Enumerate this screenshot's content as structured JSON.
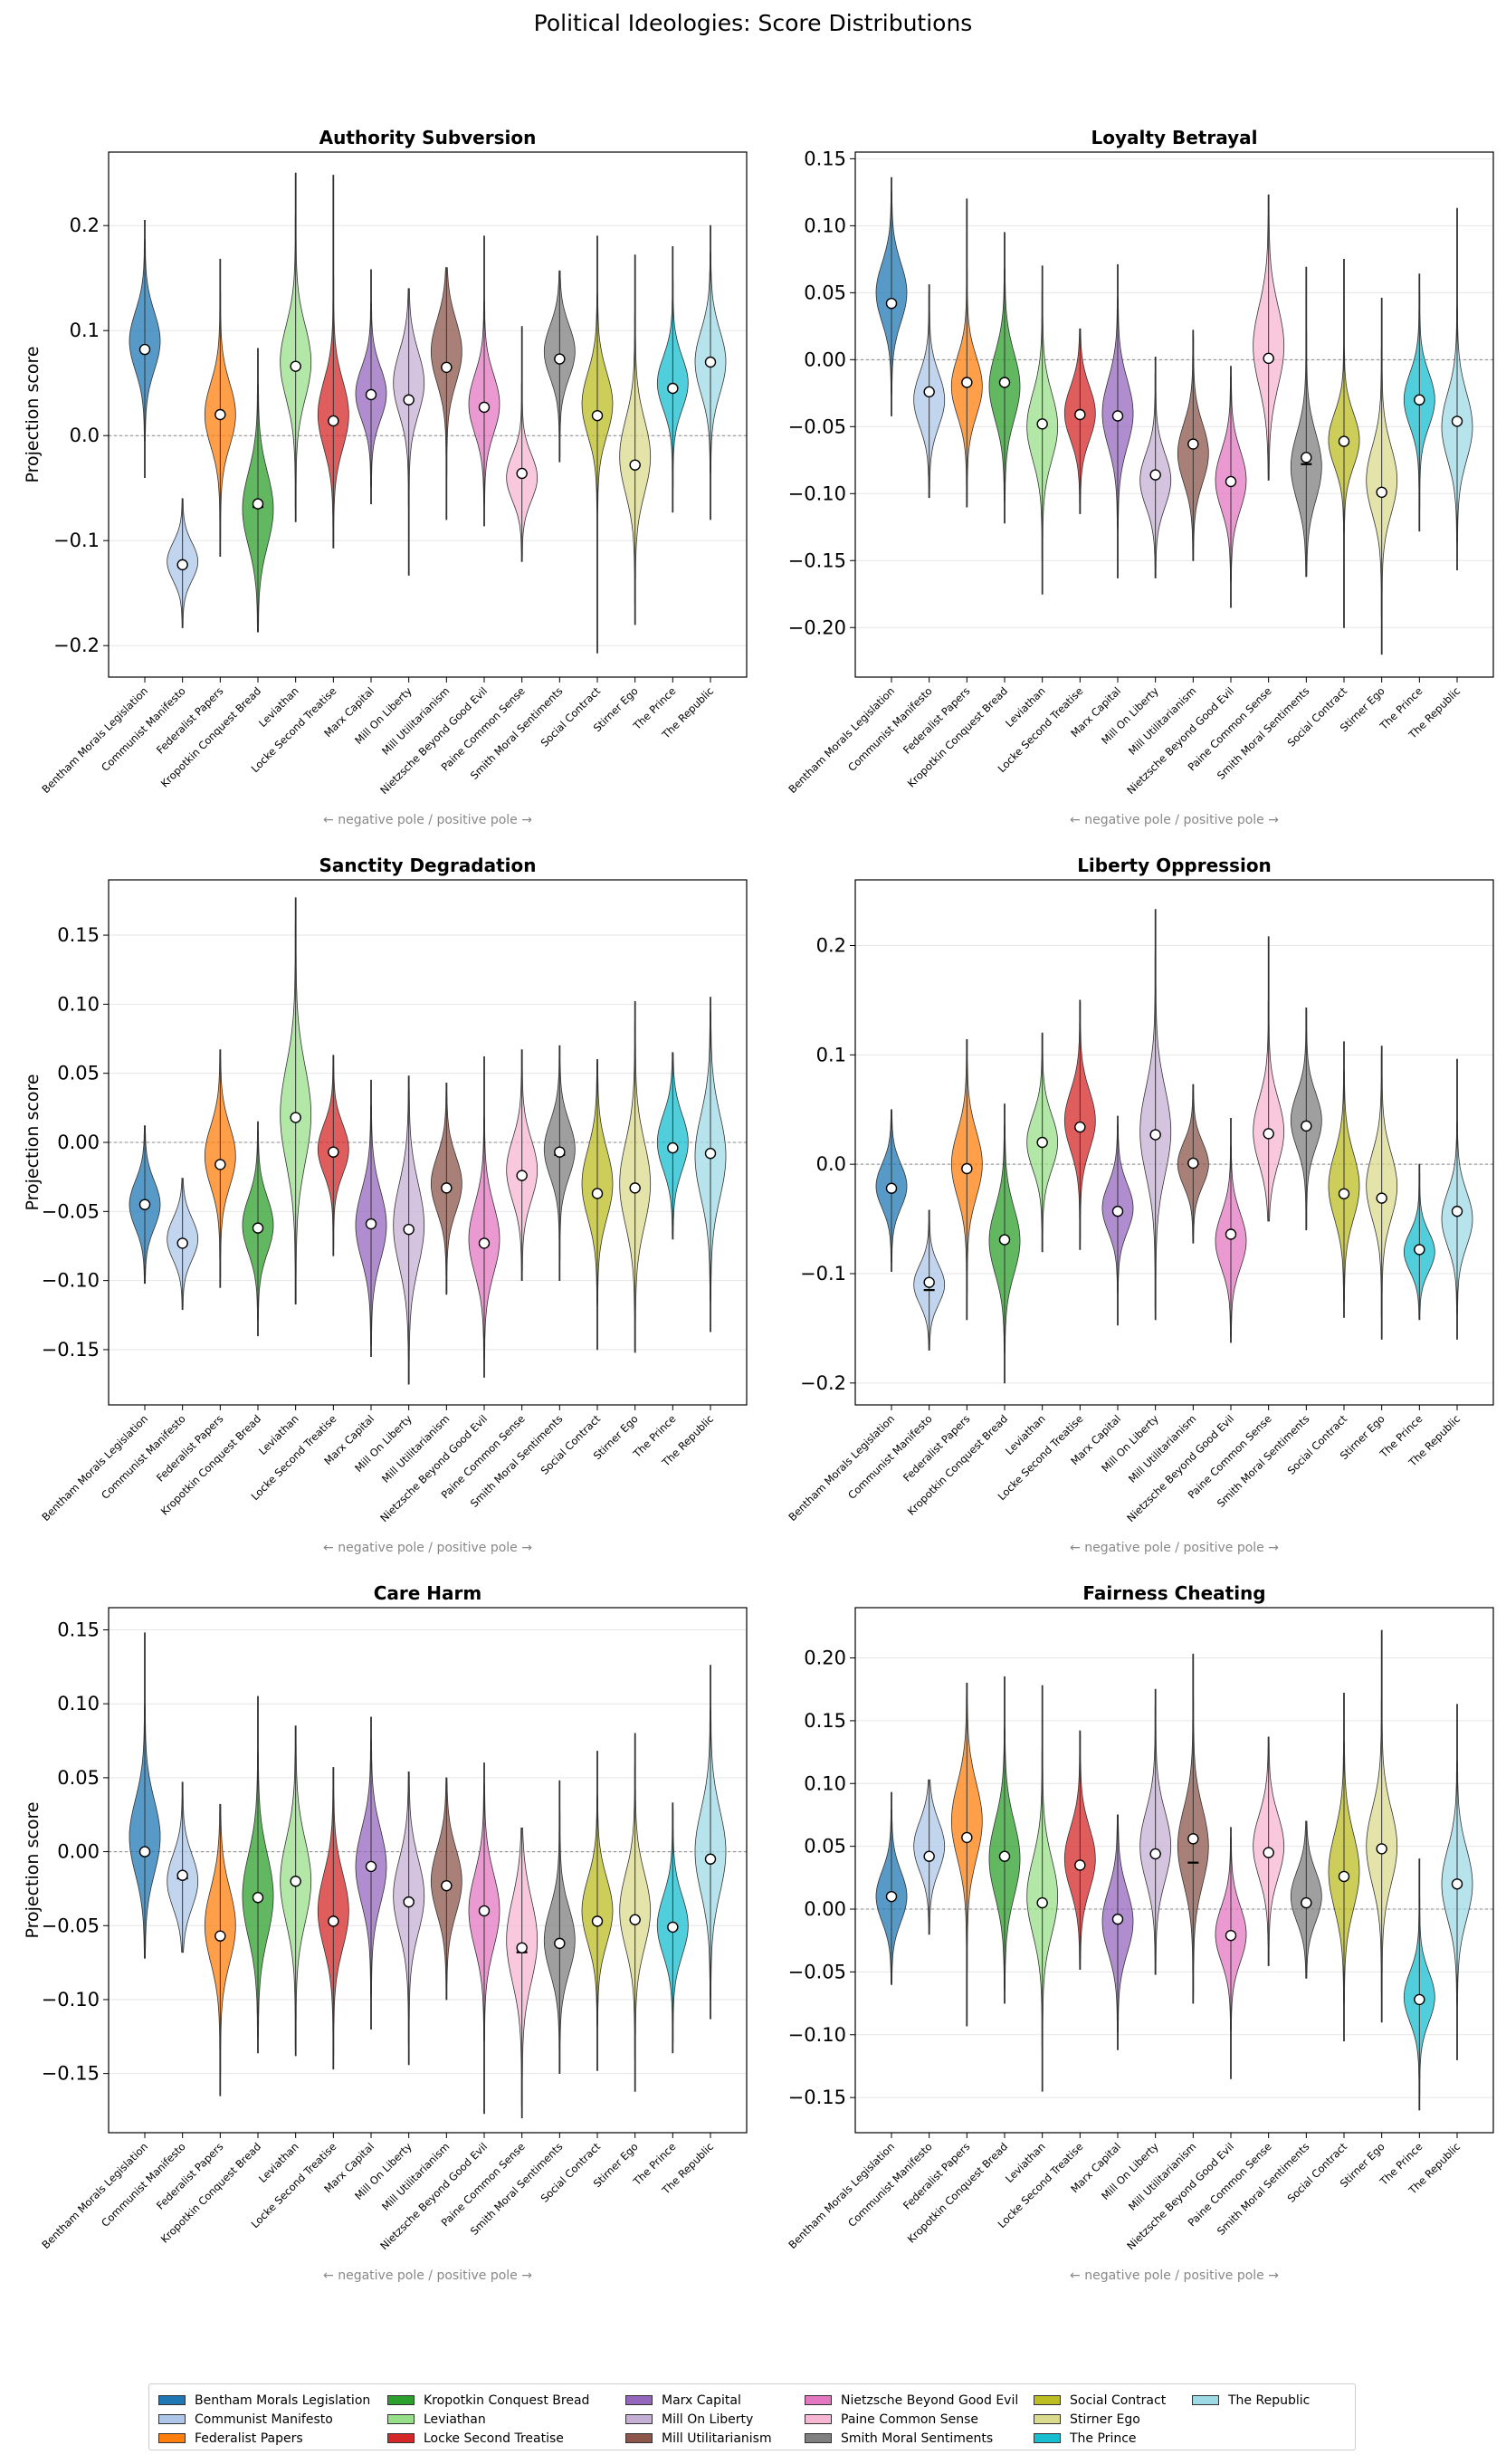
{
  "suptitle": "Political Ideologies: Score Distributions",
  "texts_common": {
    "ylabel": "Projection score",
    "pole_note": "← negative pole   /   positive pole →"
  },
  "chart_data": [
    {
      "type": "violin",
      "title": "Authority Subversion",
      "ylabel": "Projection score",
      "ylim": [
        -0.23,
        0.27
      ],
      "ticks": [
        -0.2,
        -0.1,
        0.0,
        0.1,
        0.2
      ],
      "tick_labels": [
        "−0.2",
        "−0.1",
        "0.0",
        "0.1",
        "0.2"
      ],
      "has_ylabel": true,
      "series": [
        {
          "min": -0.04,
          "max": 0.205,
          "mean": 0.082,
          "median": 0.082,
          "mode": 0.09,
          "sd": 0.028
        },
        {
          "min": -0.183,
          "max": -0.06,
          "mean": -0.123,
          "median": -0.123,
          "mode": -0.12,
          "sd": 0.018
        },
        {
          "min": -0.115,
          "max": 0.168,
          "mean": 0.02,
          "median": 0.02,
          "mode": 0.02,
          "sd": 0.03
        },
        {
          "min": -0.187,
          "max": 0.083,
          "mean": -0.065,
          "median": -0.068,
          "mode": -0.07,
          "sd": 0.035
        },
        {
          "min": -0.082,
          "max": 0.25,
          "mean": 0.066,
          "median": 0.066,
          "mode": 0.07,
          "sd": 0.035
        },
        {
          "min": -0.107,
          "max": 0.248,
          "mean": 0.014,
          "median": 0.014,
          "mode": 0.02,
          "sd": 0.032
        },
        {
          "min": -0.065,
          "max": 0.158,
          "mean": 0.039,
          "median": 0.039,
          "mode": 0.04,
          "sd": 0.025
        },
        {
          "min": -0.133,
          "max": 0.14,
          "mean": 0.034,
          "median": 0.034,
          "mode": 0.05,
          "sd": 0.03
        },
        {
          "min": -0.08,
          "max": 0.16,
          "mean": 0.065,
          "median": 0.065,
          "mode": 0.08,
          "sd": 0.03
        },
        {
          "min": -0.086,
          "max": 0.19,
          "mean": 0.027,
          "median": 0.027,
          "mode": 0.03,
          "sd": 0.028
        },
        {
          "min": -0.12,
          "max": 0.104,
          "mean": -0.036,
          "median": -0.036,
          "mode": -0.04,
          "sd": 0.022
        },
        {
          "min": -0.025,
          "max": 0.157,
          "mean": 0.073,
          "median": 0.073,
          "mode": 0.08,
          "sd": 0.025
        },
        {
          "min": -0.207,
          "max": 0.19,
          "mean": 0.019,
          "median": 0.019,
          "mode": 0.03,
          "sd": 0.03
        },
        {
          "min": -0.18,
          "max": 0.172,
          "mean": -0.028,
          "median": -0.028,
          "mode": -0.02,
          "sd": 0.035
        },
        {
          "min": -0.073,
          "max": 0.18,
          "mean": 0.045,
          "median": 0.045,
          "mode": 0.05,
          "sd": 0.025
        },
        {
          "min": -0.08,
          "max": 0.2,
          "mean": 0.07,
          "median": 0.07,
          "mode": 0.07,
          "sd": 0.03
        }
      ]
    },
    {
      "type": "violin",
      "title": "Loyalty Betrayal",
      "ylabel": "",
      "ylim": [
        -0.237,
        0.155
      ],
      "ticks": [
        -0.2,
        -0.15,
        -0.1,
        -0.05,
        0.0,
        0.05,
        0.1,
        0.15
      ],
      "tick_labels": [
        "−0.20",
        "−0.15",
        "−0.10",
        "−0.05",
        "0.00",
        "0.05",
        "0.10",
        "0.15"
      ],
      "has_ylabel": false,
      "series": [
        {
          "min": -0.042,
          "max": 0.136,
          "mean": 0.042,
          "median": 0.042,
          "mode": 0.05,
          "sd": 0.022
        },
        {
          "min": -0.103,
          "max": 0.056,
          "mean": -0.024,
          "median": -0.024,
          "mode": -0.03,
          "sd": 0.02
        },
        {
          "min": -0.11,
          "max": 0.12,
          "mean": -0.017,
          "median": -0.017,
          "mode": -0.02,
          "sd": 0.022
        },
        {
          "min": -0.122,
          "max": 0.095,
          "mean": -0.017,
          "median": -0.017,
          "mode": -0.02,
          "sd": 0.025
        },
        {
          "min": -0.175,
          "max": 0.07,
          "mean": -0.048,
          "median": -0.048,
          "mode": -0.05,
          "sd": 0.025
        },
        {
          "min": -0.115,
          "max": 0.023,
          "mean": -0.041,
          "median": -0.041,
          "mode": -0.04,
          "sd": 0.02
        },
        {
          "min": -0.163,
          "max": 0.071,
          "mean": -0.042,
          "median": -0.042,
          "mode": -0.04,
          "sd": 0.025
        },
        {
          "min": -0.163,
          "max": 0.002,
          "mean": -0.086,
          "median": -0.086,
          "mode": -0.09,
          "sd": 0.02
        },
        {
          "min": -0.15,
          "max": 0.022,
          "mean": -0.063,
          "median": -0.063,
          "mode": -0.07,
          "sd": 0.022
        },
        {
          "min": -0.185,
          "max": -0.005,
          "mean": -0.091,
          "median": -0.091,
          "mode": -0.09,
          "sd": 0.022
        },
        {
          "min": -0.09,
          "max": 0.123,
          "mean": 0.001,
          "median": 0.001,
          "mode": 0.01,
          "sd": 0.03
        },
        {
          "min": -0.162,
          "max": 0.069,
          "mean": -0.073,
          "median": -0.078,
          "mode": -0.08,
          "sd": 0.025
        },
        {
          "min": -0.2,
          "max": 0.075,
          "mean": -0.061,
          "median": -0.062,
          "mode": -0.06,
          "sd": 0.02
        },
        {
          "min": -0.22,
          "max": 0.046,
          "mean": -0.099,
          "median": -0.099,
          "mode": -0.09,
          "sd": 0.025
        },
        {
          "min": -0.128,
          "max": 0.064,
          "mean": -0.03,
          "median": -0.03,
          "mode": -0.03,
          "sd": 0.02
        },
        {
          "min": -0.157,
          "max": 0.113,
          "mean": -0.046,
          "median": -0.046,
          "mode": -0.05,
          "sd": 0.025
        }
      ]
    },
    {
      "type": "violin",
      "title": "Sanctity Degradation",
      "ylabel": "Projection score",
      "ylim": [
        -0.19,
        0.19
      ],
      "ticks": [
        -0.15,
        -0.1,
        -0.05,
        0.0,
        0.05,
        0.1,
        0.15
      ],
      "tick_labels": [
        "−0.15",
        "−0.10",
        "−0.05",
        "0.00",
        "0.05",
        "0.10",
        "0.15"
      ],
      "has_ylabel": true,
      "series": [
        {
          "min": -0.102,
          "max": 0.012,
          "mean": -0.045,
          "median": -0.045,
          "mode": -0.045,
          "sd": 0.017
        },
        {
          "min": -0.121,
          "max": -0.026,
          "mean": -0.073,
          "median": -0.073,
          "mode": -0.07,
          "sd": 0.015
        },
        {
          "min": -0.105,
          "max": 0.067,
          "mean": -0.016,
          "median": -0.016,
          "mode": -0.01,
          "sd": 0.022
        },
        {
          "min": -0.14,
          "max": 0.015,
          "mean": -0.062,
          "median": -0.062,
          "mode": -0.06,
          "sd": 0.02
        },
        {
          "min": -0.117,
          "max": 0.177,
          "mean": 0.018,
          "median": 0.018,
          "mode": 0.02,
          "sd": 0.035
        },
        {
          "min": -0.082,
          "max": 0.063,
          "mean": -0.007,
          "median": -0.007,
          "mode": -0.005,
          "sd": 0.018
        },
        {
          "min": -0.155,
          "max": 0.045,
          "mean": -0.059,
          "median": -0.059,
          "mode": -0.06,
          "sd": 0.025
        },
        {
          "min": -0.175,
          "max": 0.048,
          "mean": -0.063,
          "median": -0.063,
          "mode": -0.06,
          "sd": 0.03
        },
        {
          "min": -0.11,
          "max": 0.043,
          "mean": -0.033,
          "median": -0.033,
          "mode": -0.03,
          "sd": 0.02
        },
        {
          "min": -0.17,
          "max": 0.062,
          "mean": -0.073,
          "median": -0.073,
          "mode": -0.07,
          "sd": 0.025
        },
        {
          "min": -0.1,
          "max": 0.067,
          "mean": -0.024,
          "median": -0.024,
          "mode": -0.02,
          "sd": 0.022
        },
        {
          "min": -0.1,
          "max": 0.07,
          "mean": -0.007,
          "median": -0.009,
          "mode": -0.005,
          "sd": 0.02
        },
        {
          "min": -0.15,
          "max": 0.06,
          "mean": -0.037,
          "median": -0.037,
          "mode": -0.03,
          "sd": 0.025
        },
        {
          "min": -0.152,
          "max": 0.102,
          "mean": -0.033,
          "median": -0.033,
          "mode": -0.03,
          "sd": 0.03
        },
        {
          "min": -0.07,
          "max": 0.065,
          "mean": -0.004,
          "median": -0.004,
          "mode": 0.0,
          "sd": 0.02
        },
        {
          "min": -0.137,
          "max": 0.105,
          "mean": -0.008,
          "median": -0.008,
          "mode": -0.01,
          "sd": 0.03
        }
      ]
    },
    {
      "type": "violin",
      "title": "Liberty Oppression",
      "ylabel": "",
      "ylim": [
        -0.22,
        0.26
      ],
      "ticks": [
        -0.2,
        -0.1,
        0.0,
        0.1,
        0.2
      ],
      "tick_labels": [
        "−0.2",
        "−0.1",
        "0.0",
        "0.1",
        "0.2"
      ],
      "has_ylabel": false,
      "series": [
        {
          "min": -0.098,
          "max": 0.05,
          "mean": -0.022,
          "median": -0.022,
          "mode": -0.02,
          "sd": 0.02
        },
        {
          "min": -0.17,
          "max": -0.042,
          "mean": -0.108,
          "median": -0.115,
          "mode": -0.11,
          "sd": 0.018
        },
        {
          "min": -0.142,
          "max": 0.114,
          "mean": -0.004,
          "median": -0.004,
          "mode": 0.0,
          "sd": 0.03
        },
        {
          "min": -0.2,
          "max": 0.055,
          "mean": -0.069,
          "median": -0.069,
          "mode": -0.07,
          "sd": 0.03
        },
        {
          "min": -0.08,
          "max": 0.12,
          "mean": 0.02,
          "median": 0.02,
          "mode": 0.02,
          "sd": 0.025
        },
        {
          "min": -0.078,
          "max": 0.15,
          "mean": 0.034,
          "median": 0.034,
          "mode": 0.04,
          "sd": 0.027
        },
        {
          "min": -0.147,
          "max": 0.044,
          "mean": -0.043,
          "median": -0.043,
          "mode": -0.04,
          "sd": 0.022
        },
        {
          "min": -0.142,
          "max": 0.233,
          "mean": 0.027,
          "median": 0.027,
          "mode": 0.03,
          "sd": 0.04
        },
        {
          "min": -0.072,
          "max": 0.073,
          "mean": 0.001,
          "median": 0.001,
          "mode": 0.0,
          "sd": 0.02
        },
        {
          "min": -0.163,
          "max": 0.042,
          "mean": -0.064,
          "median": -0.064,
          "mode": -0.07,
          "sd": 0.025
        },
        {
          "min": -0.052,
          "max": 0.208,
          "mean": 0.028,
          "median": 0.028,
          "mode": 0.03,
          "sd": 0.03
        },
        {
          "min": -0.06,
          "max": 0.143,
          "mean": 0.035,
          "median": 0.035,
          "mode": 0.04,
          "sd": 0.025
        },
        {
          "min": -0.14,
          "max": 0.112,
          "mean": -0.027,
          "median": -0.027,
          "mode": -0.02,
          "sd": 0.03
        },
        {
          "min": -0.16,
          "max": 0.108,
          "mean": -0.031,
          "median": -0.031,
          "mode": -0.02,
          "sd": 0.03
        },
        {
          "min": -0.142,
          "max": 0.0,
          "mean": -0.078,
          "median": -0.078,
          "mode": -0.08,
          "sd": 0.018
        },
        {
          "min": -0.16,
          "max": 0.096,
          "mean": -0.043,
          "median": -0.043,
          "mode": -0.05,
          "sd": 0.025
        }
      ]
    },
    {
      "type": "violin",
      "title": "Care Harm",
      "ylabel": "Projection score",
      "ylim": [
        -0.19,
        0.165
      ],
      "ticks": [
        -0.15,
        -0.1,
        -0.05,
        0.0,
        0.05,
        0.1,
        0.15
      ],
      "tick_labels": [
        "−0.15",
        "−0.10",
        "−0.05",
        "0.00",
        "0.05",
        "0.10",
        "0.15"
      ],
      "has_ylabel": true,
      "series": [
        {
          "min": -0.072,
          "max": 0.148,
          "mean": 0.0,
          "median": 0.0,
          "mode": 0.01,
          "sd": 0.025
        },
        {
          "min": -0.068,
          "max": 0.047,
          "mean": -0.016,
          "median": -0.018,
          "mode": -0.02,
          "sd": 0.018
        },
        {
          "min": -0.165,
          "max": 0.032,
          "mean": -0.057,
          "median": -0.057,
          "mode": -0.05,
          "sd": 0.025
        },
        {
          "min": -0.136,
          "max": 0.105,
          "mean": -0.031,
          "median": -0.031,
          "mode": -0.03,
          "sd": 0.028
        },
        {
          "min": -0.138,
          "max": 0.085,
          "mean": -0.02,
          "median": -0.02,
          "mode": -0.02,
          "sd": 0.028
        },
        {
          "min": -0.147,
          "max": 0.057,
          "mean": -0.047,
          "median": -0.047,
          "mode": -0.04,
          "sd": 0.025
        },
        {
          "min": -0.12,
          "max": 0.091,
          "mean": -0.01,
          "median": -0.01,
          "mode": -0.01,
          "sd": 0.025
        },
        {
          "min": -0.144,
          "max": 0.054,
          "mean": -0.034,
          "median": -0.033,
          "mode": -0.03,
          "sd": 0.025
        },
        {
          "min": -0.1,
          "max": 0.05,
          "mean": -0.023,
          "median": -0.023,
          "mode": -0.02,
          "sd": 0.022
        },
        {
          "min": -0.177,
          "max": 0.06,
          "mean": -0.04,
          "median": -0.04,
          "mode": -0.04,
          "sd": 0.025
        },
        {
          "min": -0.18,
          "max": 0.016,
          "mean": -0.065,
          "median": -0.068,
          "mode": -0.06,
          "sd": 0.028
        },
        {
          "min": -0.15,
          "max": 0.048,
          "mean": -0.062,
          "median": -0.062,
          "mode": -0.06,
          "sd": 0.022
        },
        {
          "min": -0.148,
          "max": 0.068,
          "mean": -0.047,
          "median": -0.047,
          "mode": -0.04,
          "sd": 0.022
        },
        {
          "min": -0.162,
          "max": 0.08,
          "mean": -0.046,
          "median": -0.046,
          "mode": -0.04,
          "sd": 0.025
        },
        {
          "min": -0.136,
          "max": 0.033,
          "mean": -0.051,
          "median": -0.051,
          "mode": -0.05,
          "sd": 0.02
        },
        {
          "min": -0.113,
          "max": 0.126,
          "mean": -0.005,
          "median": -0.005,
          "mode": 0.0,
          "sd": 0.028
        }
      ]
    },
    {
      "type": "violin",
      "title": "Fairness Cheating",
      "ylabel": "",
      "ylim": [
        -0.178,
        0.24
      ],
      "ticks": [
        -0.15,
        -0.1,
        -0.05,
        0.0,
        0.05,
        0.1,
        0.15,
        0.2
      ],
      "tick_labels": [
        "−0.15",
        "−0.10",
        "−0.05",
        "0.00",
        "0.05",
        "0.10",
        "0.15",
        "0.20"
      ],
      "has_ylabel": false,
      "series": [
        {
          "min": -0.06,
          "max": 0.093,
          "mean": 0.01,
          "median": 0.01,
          "mode": 0.01,
          "sd": 0.02
        },
        {
          "min": -0.02,
          "max": 0.103,
          "mean": 0.042,
          "median": 0.042,
          "mode": 0.05,
          "sd": 0.02
        },
        {
          "min": -0.093,
          "max": 0.18,
          "mean": 0.057,
          "median": 0.057,
          "mode": 0.07,
          "sd": 0.03
        },
        {
          "min": -0.075,
          "max": 0.185,
          "mean": 0.042,
          "median": 0.042,
          "mode": 0.04,
          "sd": 0.03
        },
        {
          "min": -0.145,
          "max": 0.178,
          "mean": 0.005,
          "median": 0.005,
          "mode": 0.01,
          "sd": 0.03
        },
        {
          "min": -0.048,
          "max": 0.142,
          "mean": 0.035,
          "median": 0.035,
          "mode": 0.04,
          "sd": 0.025
        },
        {
          "min": -0.112,
          "max": 0.075,
          "mean": -0.008,
          "median": -0.008,
          "mode": -0.01,
          "sd": 0.025
        },
        {
          "min": -0.052,
          "max": 0.175,
          "mean": 0.044,
          "median": 0.044,
          "mode": 0.05,
          "sd": 0.028
        },
        {
          "min": -0.075,
          "max": 0.203,
          "mean": 0.056,
          "median": 0.037,
          "mode": 0.05,
          "sd": 0.03
        },
        {
          "min": -0.135,
          "max": 0.065,
          "mean": -0.021,
          "median": -0.021,
          "mode": -0.02,
          "sd": 0.022
        },
        {
          "min": -0.045,
          "max": 0.137,
          "mean": 0.045,
          "median": 0.045,
          "mode": 0.05,
          "sd": 0.025
        },
        {
          "min": -0.055,
          "max": 0.07,
          "mean": 0.005,
          "median": 0.005,
          "mode": 0.01,
          "sd": 0.02
        },
        {
          "min": -0.105,
          "max": 0.172,
          "mean": 0.026,
          "median": 0.026,
          "mode": 0.03,
          "sd": 0.03
        },
        {
          "min": -0.09,
          "max": 0.222,
          "mean": 0.048,
          "median": 0.048,
          "mode": 0.05,
          "sd": 0.03
        },
        {
          "min": -0.16,
          "max": 0.04,
          "mean": -0.072,
          "median": -0.072,
          "mode": -0.07,
          "sd": 0.02
        },
        {
          "min": -0.12,
          "max": 0.163,
          "mean": 0.02,
          "median": 0.02,
          "mode": 0.02,
          "sd": 0.028
        }
      ]
    }
  ],
  "categories": [
    "Bentham Morals Legislation",
    "Communist Manifesto",
    "Federalist Papers",
    "Kropotkin Conquest Bread",
    "Leviathan",
    "Locke Second Treatise",
    "Marx Capital",
    "Mill On Liberty",
    "Mill Utilitarianism",
    "Nietzsche Beyond Good Evil",
    "Paine Common Sense",
    "Smith Moral Sentiments",
    "Social Contract",
    "Stirner Ego",
    "The Prince",
    "The Republic"
  ],
  "colors": [
    "#1f77b4",
    "#aec7e8",
    "#ff7f0e",
    "#2ca02c",
    "#98df8a",
    "#d62728",
    "#9467bd",
    "#c5b0d5",
    "#8c564b",
    "#e377c2",
    "#f7b6d2",
    "#7f7f7f",
    "#bcbd22",
    "#dbdb8d",
    "#17becf",
    "#9edae5"
  ]
}
